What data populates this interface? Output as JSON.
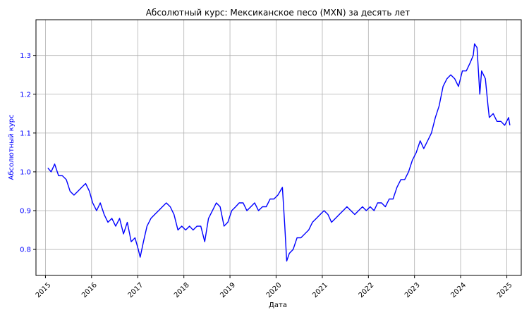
{
  "chart_data": {
    "type": "line",
    "title": "Абсолютный курс: Мексиканское песо (MXN) за десять лет",
    "xlabel": "Дата",
    "ylabel": "Абсолютный курс",
    "xlim": [
      "2014-10-18",
      "2025-04-25"
    ],
    "ylim": [
      0.733,
      1.392
    ],
    "x_ticks": [
      "2015",
      "2016",
      "2017",
      "2018",
      "2019",
      "2020",
      "2021",
      "2022",
      "2023",
      "2024",
      "2025"
    ],
    "y_ticks": [
      "0.8",
      "0.9",
      "1.0",
      "1.1",
      "1.2",
      "1.3"
    ],
    "grid": true,
    "line_color": "#0000ff",
    "ylabel_color": "#0000ff",
    "series": [
      {
        "x": [
          "2015-01-20",
          "2015-02-15",
          "2015-03-15",
          "2015-04-15",
          "2015-05-15",
          "2015-06-15",
          "2015-07-15",
          "2015-08-15",
          "2015-09-15",
          "2015-10-15",
          "2015-11-15",
          "2015-12-15",
          "2016-01-10",
          "2016-02-10",
          "2016-03-10",
          "2016-04-10",
          "2016-05-10",
          "2016-06-10",
          "2016-07-10",
          "2016-08-10",
          "2016-09-10",
          "2016-10-10",
          "2016-11-10",
          "2016-12-10",
          "2017-01-05",
          "2017-01-20",
          "2017-02-15",
          "2017-03-15",
          "2017-04-15",
          "2017-05-15",
          "2017-06-15",
          "2017-07-15",
          "2017-08-15",
          "2017-09-15",
          "2017-10-15",
          "2017-11-15",
          "2017-12-15",
          "2018-01-15",
          "2018-02-15",
          "2018-03-15",
          "2018-04-15",
          "2018-05-15",
          "2018-06-15",
          "2018-07-15",
          "2018-08-15",
          "2018-09-15",
          "2018-10-15",
          "2018-11-15",
          "2018-12-15",
          "2019-01-15",
          "2019-02-15",
          "2019-03-15",
          "2019-04-15",
          "2019-05-15",
          "2019-06-15",
          "2019-07-15",
          "2019-08-15",
          "2019-09-15",
          "2019-10-15",
          "2019-11-15",
          "2019-12-15",
          "2020-01-15",
          "2020-02-20",
          "2020-03-10",
          "2020-03-25",
          "2020-04-15",
          "2020-05-15",
          "2020-06-15",
          "2020-07-15",
          "2020-08-15",
          "2020-09-15",
          "2020-10-15",
          "2020-11-15",
          "2020-12-15",
          "2021-01-15",
          "2021-02-15",
          "2021-03-15",
          "2021-04-15",
          "2021-05-15",
          "2021-06-15",
          "2021-07-15",
          "2021-08-15",
          "2021-09-15",
          "2021-10-15",
          "2021-11-15",
          "2021-12-15",
          "2022-01-15",
          "2022-02-15",
          "2022-03-15",
          "2022-04-15",
          "2022-05-15",
          "2022-06-15",
          "2022-07-15",
          "2022-08-15",
          "2022-09-15",
          "2022-10-15",
          "2022-11-15",
          "2022-12-15",
          "2023-01-15",
          "2023-02-15",
          "2023-03-15",
          "2023-04-15",
          "2023-05-15",
          "2023-06-15",
          "2023-07-15",
          "2023-08-15",
          "2023-09-15",
          "2023-10-15",
          "2023-11-15",
          "2023-12-15",
          "2024-01-15",
          "2024-02-15",
          "2024-03-15",
          "2024-04-10",
          "2024-04-20",
          "2024-05-10",
          "2024-06-01",
          "2024-06-15",
          "2024-07-15",
          "2024-08-05",
          "2024-08-15",
          "2024-09-15",
          "2024-10-15",
          "2024-11-15",
          "2024-12-15",
          "2025-01-15",
          "2025-01-25"
        ],
        "y": [
          1.01,
          1.0,
          1.02,
          0.99,
          0.99,
          0.98,
          0.95,
          0.94,
          0.95,
          0.96,
          0.97,
          0.95,
          0.92,
          0.9,
          0.92,
          0.89,
          0.87,
          0.88,
          0.86,
          0.88,
          0.84,
          0.87,
          0.82,
          0.83,
          0.8,
          0.78,
          0.82,
          0.86,
          0.88,
          0.89,
          0.9,
          0.91,
          0.92,
          0.91,
          0.89,
          0.85,
          0.86,
          0.85,
          0.86,
          0.85,
          0.86,
          0.86,
          0.82,
          0.88,
          0.9,
          0.92,
          0.91,
          0.86,
          0.87,
          0.9,
          0.91,
          0.92,
          0.92,
          0.9,
          0.91,
          0.92,
          0.9,
          0.91,
          0.91,
          0.93,
          0.93,
          0.94,
          0.96,
          0.86,
          0.77,
          0.79,
          0.8,
          0.83,
          0.83,
          0.84,
          0.85,
          0.87,
          0.88,
          0.89,
          0.9,
          0.89,
          0.87,
          0.88,
          0.89,
          0.9,
          0.91,
          0.9,
          0.89,
          0.9,
          0.91,
          0.9,
          0.91,
          0.9,
          0.92,
          0.92,
          0.91,
          0.93,
          0.93,
          0.96,
          0.98,
          0.98,
          1.0,
          1.03,
          1.05,
          1.08,
          1.06,
          1.08,
          1.1,
          1.14,
          1.17,
          1.22,
          1.24,
          1.25,
          1.24,
          1.22,
          1.26,
          1.26,
          1.28,
          1.3,
          1.33,
          1.32,
          1.2,
          1.26,
          1.24,
          1.17,
          1.14,
          1.15,
          1.13,
          1.13,
          1.12,
          1.14,
          1.12
        ]
      }
    ]
  }
}
